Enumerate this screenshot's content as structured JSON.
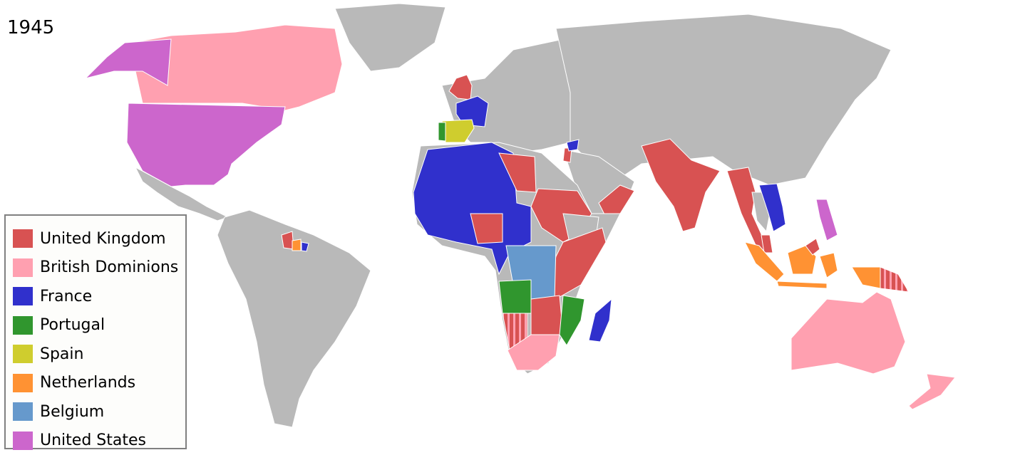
{
  "year": "1945",
  "colors": {
    "ocean": "#ffffff",
    "other": "#b9b9b9",
    "border": "#ffffff"
  },
  "legend": [
    {
      "label": "United Kingdom",
      "color": "#d85252"
    },
    {
      "label": "British Dominions",
      "color": "#ffa0b0"
    },
    {
      "label": "France",
      "color": "#3030cc"
    },
    {
      "label": "Portugal",
      "color": "#30962e"
    },
    {
      "label": "Spain",
      "color": "#cfcd2e"
    },
    {
      "label": "Netherlands",
      "color": "#ff9233"
    },
    {
      "label": "Belgium",
      "color": "#6699cc"
    },
    {
      "label": "United States",
      "color": "#cc66cc"
    }
  ]
}
